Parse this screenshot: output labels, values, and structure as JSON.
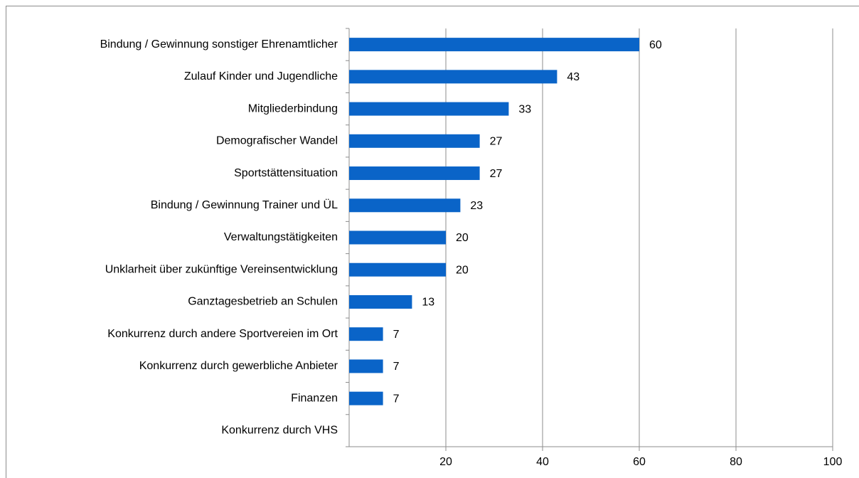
{
  "chart_data": {
    "type": "bar",
    "orientation": "horizontal",
    "categories": [
      "Bindung / Gewinnung sonstiger Ehrenamtlicher",
      "Zulauf Kinder und Jugendliche",
      "Mitgliederbindung",
      "Demografischer Wandel",
      "Sportstättensituation",
      "Bindung / Gewinnung Trainer und ÜL",
      "Verwaltungstätigkeiten",
      "Unklarheit über zukünftige Vereinsentwicklung",
      "Ganztagesbetrieb an Schulen",
      "Konkurrenz durch andere Sportvereien im Ort",
      "Konkurrenz durch gewerbliche Anbieter",
      "Finanzen",
      "Konkurrenz durch VHS"
    ],
    "values": [
      60,
      43,
      33,
      27,
      27,
      23,
      20,
      20,
      13,
      7,
      7,
      7,
      null
    ],
    "color": "#0a64c8",
    "xlim": [
      0,
      100
    ],
    "xticks": [
      20,
      40,
      60,
      80,
      100
    ],
    "grid": true
  }
}
